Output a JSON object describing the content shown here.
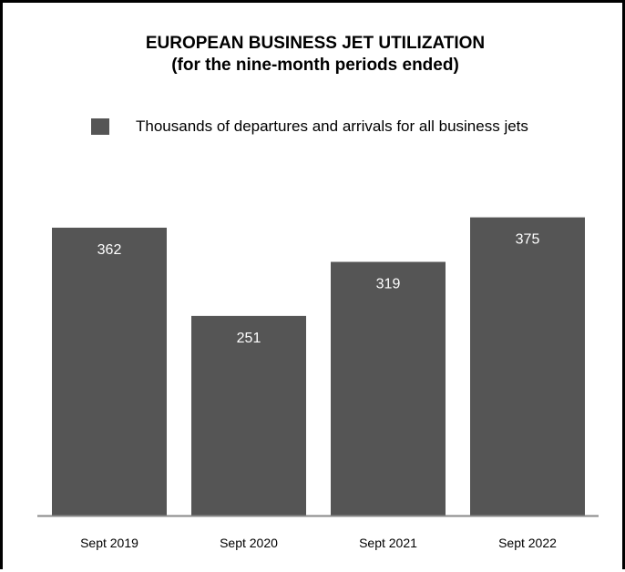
{
  "chart_data": {
    "type": "bar",
    "title": "EUROPEAN BUSINESS JET UTILIZATION",
    "subtitle": "(for the nine-month periods ended)",
    "categories": [
      "Sept 2019",
      "Sept 2020",
      "Sept 2021",
      "Sept 2022"
    ],
    "series": [
      {
        "name": "Thousands of departures and arrivals for all business jets",
        "values": [
          362,
          251,
          319,
          375
        ]
      }
    ],
    "data_labels": [
      "362",
      "251",
      "319",
      "375"
    ],
    "xlabel": "",
    "ylabel": "",
    "ylim": [
      0,
      400
    ],
    "grid": false,
    "legend": "top-left",
    "bar_color": "#555555",
    "axis_color": "#888888",
    "label_color": "#ffffff"
  }
}
